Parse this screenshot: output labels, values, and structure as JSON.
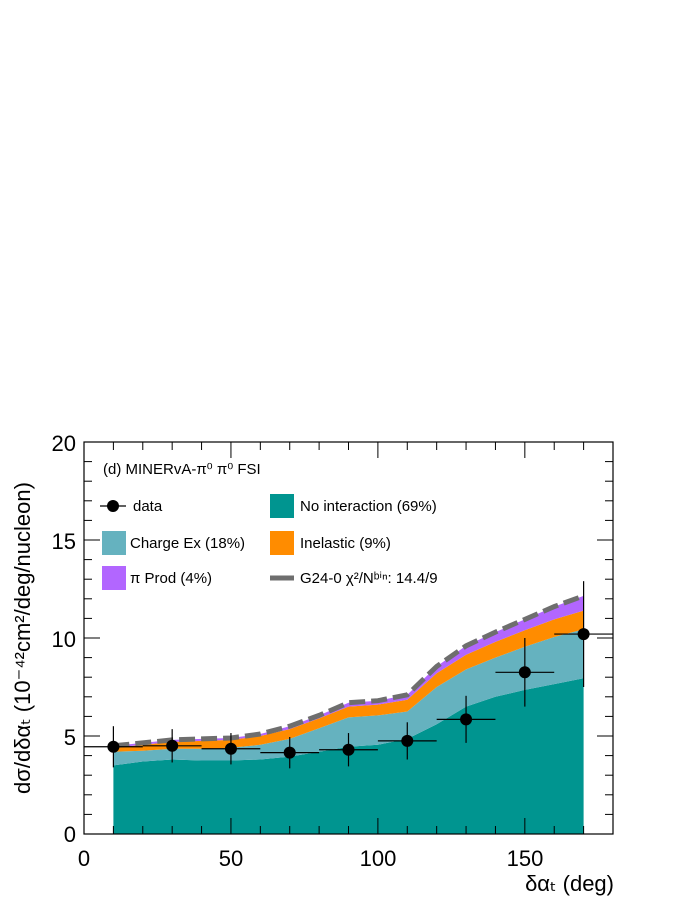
{
  "chart_data": {
    "type": "area",
    "panel_label": "(d) MINERvA-π⁰  π⁰ FSI",
    "xlabel": "δαₜ (deg)",
    "ylabel": "dσ/dδαₜ (10⁻⁴²cm²/deg/nucleon)",
    "xlim": [
      0,
      180
    ],
    "ylim": [
      0,
      20
    ],
    "x_ticks": [
      0,
      50,
      100,
      150
    ],
    "y_ticks": [
      0,
      5,
      10,
      15,
      20
    ],
    "colors": {
      "no_interaction": "#009590",
      "charge_ex": "#65b2bf",
      "inelastic": "#ff8c00",
      "pi_prod": "#b266ff",
      "total": "#6e6e6e",
      "data": "#000000"
    },
    "legend": {
      "data": "data",
      "no_interaction": "No interaction (69%)",
      "charge_ex": "Charge Ex (18%)",
      "inelastic": "Inelastic (9%)",
      "pi_prod": "π Prod (4%)",
      "total": "G24-0 χ²/Nᵇⁱⁿ: 14.4/9"
    },
    "x": [
      10,
      20,
      30,
      40,
      50,
      60,
      70,
      80,
      90,
      100,
      110,
      120,
      130,
      140,
      150,
      160,
      170
    ],
    "stack_series": [
      {
        "key": "no_interaction",
        "values": [
          3.5,
          3.7,
          3.8,
          3.75,
          3.75,
          3.8,
          3.95,
          4.2,
          4.45,
          4.55,
          4.85,
          5.6,
          6.5,
          7.0,
          7.35,
          7.65,
          7.95
        ]
      },
      {
        "key": "charge_ex",
        "values": [
          0.7,
          0.55,
          0.55,
          0.6,
          0.65,
          0.75,
          0.9,
          1.2,
          1.5,
          1.5,
          1.4,
          1.9,
          1.9,
          2.0,
          2.2,
          2.4,
          2.5
        ]
      },
      {
        "key": "inelastic",
        "values": [
          0.2,
          0.3,
          0.35,
          0.4,
          0.4,
          0.45,
          0.5,
          0.5,
          0.55,
          0.55,
          0.6,
          0.7,
          0.75,
          0.8,
          0.85,
          0.9,
          0.95
        ]
      },
      {
        "key": "pi_prod",
        "values": [
          0.1,
          0.1,
          0.1,
          0.1,
          0.1,
          0.1,
          0.15,
          0.15,
          0.2,
          0.2,
          0.25,
          0.35,
          0.45,
          0.5,
          0.55,
          0.65,
          0.75
        ]
      }
    ],
    "data_points": [
      {
        "x": 10,
        "y": 4.45,
        "xerr": 10,
        "yerr": 1.05
      },
      {
        "x": 30,
        "y": 4.5,
        "xerr": 10,
        "yerr": 0.85
      },
      {
        "x": 50,
        "y": 4.35,
        "xerr": 10,
        "yerr": 0.8
      },
      {
        "x": 70,
        "y": 4.15,
        "xerr": 10,
        "yerr": 0.8
      },
      {
        "x": 90,
        "y": 4.3,
        "xerr": 10,
        "yerr": 0.85
      },
      {
        "x": 110,
        "y": 4.75,
        "xerr": 10,
        "yerr": 0.95
      },
      {
        "x": 130,
        "y": 5.85,
        "xerr": 10,
        "yerr": 1.2
      },
      {
        "x": 150,
        "y": 8.25,
        "xerr": 10,
        "yerr": 1.75
      },
      {
        "x": 170,
        "y": 10.2,
        "xerr": 10,
        "yerr": 2.7
      }
    ]
  }
}
